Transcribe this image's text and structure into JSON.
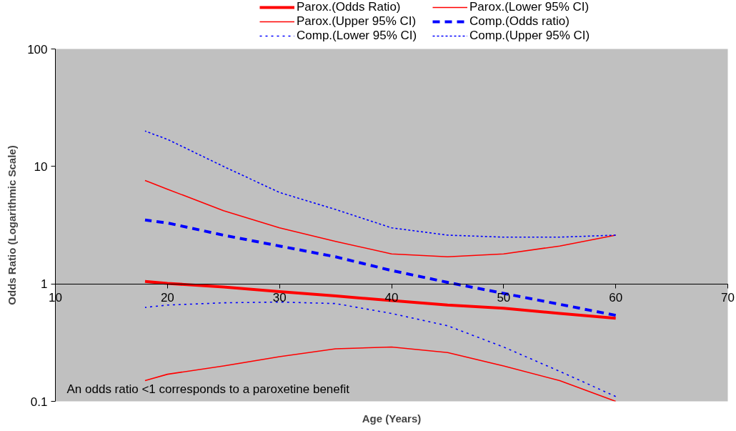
{
  "chart_data": {
    "type": "line",
    "xlabel": "Age (Years)",
    "ylabel": "Odds Ratio (Logarithmic Scale)",
    "log": "y",
    "legend": "top",
    "xlim": [
      10,
      70
    ],
    "ylim": [
      0.1,
      100
    ],
    "xticks": [
      10,
      20,
      30,
      40,
      50,
      60,
      70
    ],
    "yticks": [
      0.1,
      1,
      10,
      100
    ],
    "annotations": [
      "An odds ratio <1 corresponds to a paroxetine benefit"
    ],
    "x": [
      18,
      20,
      25,
      30,
      35,
      40,
      45,
      50,
      55,
      60
    ],
    "series": [
      {
        "name": "Parox.(Odds Ratio)",
        "color": "#ff0000",
        "line_style": "solid",
        "values": [
          1.05,
          1.01,
          0.94,
          0.86,
          0.79,
          0.72,
          0.66,
          0.62,
          0.56,
          0.51
        ]
      },
      {
        "name": "Parox.(Lower 95% CI)",
        "color": "#ff0000",
        "line_style": "solid",
        "values": [
          0.15,
          0.17,
          0.2,
          0.24,
          0.28,
          0.29,
          0.26,
          0.2,
          0.15,
          0.1
        ]
      },
      {
        "name": "Parox.(Upper 95% CI)",
        "color": "#ff0000",
        "line_style": "solid",
        "values": [
          7.6,
          6.4,
          4.2,
          3.0,
          2.3,
          1.8,
          1.7,
          1.8,
          2.1,
          2.6
        ]
      },
      {
        "name": "Comp.(Odds ratio)",
        "color": "#0000ff",
        "line_style": "dashed",
        "values": [
          3.5,
          3.3,
          2.6,
          2.1,
          1.7,
          1.3,
          1.03,
          0.83,
          0.67,
          0.54
        ]
      },
      {
        "name": "Comp.(Lower 95% CI)",
        "color": "#0000ff",
        "line_style": "dotted",
        "values": [
          0.63,
          0.66,
          0.69,
          0.7,
          0.68,
          0.56,
          0.44,
          0.29,
          0.18,
          0.11
        ]
      },
      {
        "name": "Comp.(Upper 95% CI)",
        "color": "#0000ff",
        "line_style": "dotted",
        "values": [
          20,
          17,
          10,
          6,
          4.3,
          3.0,
          2.6,
          2.5,
          2.5,
          2.6
        ]
      }
    ]
  }
}
